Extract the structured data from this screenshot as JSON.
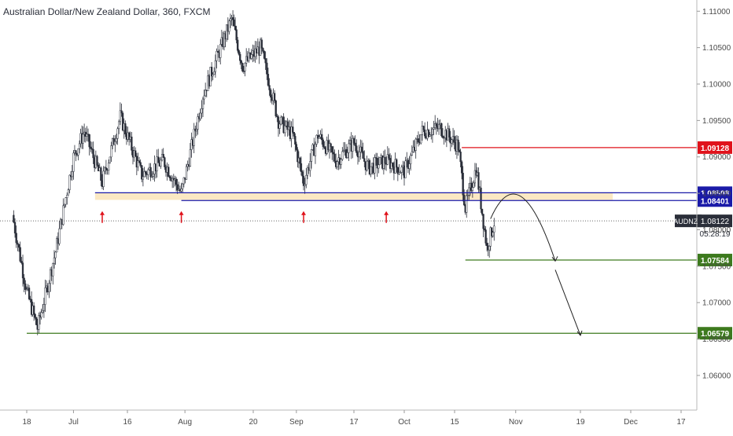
{
  "title": "Australian Dollar/New Zealand Dollar, 360, FXCM",
  "colors": {
    "candle": "#2a2e39",
    "axis_text": "#4a4a4a",
    "grid": "#ececec",
    "red_level": "#e0121b",
    "blue_level": "#1a1aa8",
    "green_level": "#3d7a1e",
    "zone_fill": "#fbe6bd",
    "arrow_up": "#e0121b",
    "projection": "#222222",
    "price_tag": "#2a2e39"
  },
  "chart_data": {
    "type": "candlestick",
    "symbol": "AUDNZD",
    "ylim": [
      1.056,
      1.111
    ],
    "y_ticks": [
      "1.11000",
      "1.10500",
      "1.10000",
      "1.09500",
      "1.09000",
      "1.08500",
      "1.08000",
      "1.07500",
      "1.07000",
      "1.06500",
      "1.06000"
    ],
    "x_ticks": [
      "18",
      "Jul",
      "16",
      "Aug",
      "20",
      "Sep",
      "17",
      "Oct",
      "15",
      "Nov",
      "19",
      "Dec",
      "17"
    ],
    "levels": [
      {
        "price": 1.09128,
        "label": "1.09128",
        "style": "red"
      },
      {
        "price": 1.08508,
        "label": "1.08508",
        "style": "blue"
      },
      {
        "price": 1.08401,
        "label": "1.08401",
        "style": "blue"
      },
      {
        "price": 1.07584,
        "label": "1.07584",
        "style": "green"
      },
      {
        "price": 1.06579,
        "label": "1.06579",
        "style": "green"
      }
    ],
    "current_price": {
      "symbol": "AUDNZD",
      "price": 1.08122,
      "label": "1.08122",
      "countdown": "05:28:19"
    },
    "support_zone": {
      "top": 1.0851,
      "bottom": 1.0841
    },
    "series_close_approx": [
      {
        "date": "Jun 14",
        "price": 1.082
      },
      {
        "date": "Jun 18",
        "price": 1.0715
      },
      {
        "date": "Jun 21",
        "price": 1.0665
      },
      {
        "date": "Jun 26",
        "price": 1.077
      },
      {
        "date": "Jul 1",
        "price": 1.09
      },
      {
        "date": "Jul 4",
        "price": 1.0935
      },
      {
        "date": "Jul 9",
        "price": 1.0865
      },
      {
        "date": "Jul 14",
        "price": 1.0955
      },
      {
        "date": "Jul 20",
        "price": 1.0875
      },
      {
        "date": "Jul 26",
        "price": 1.0895
      },
      {
        "date": "Jul 31",
        "price": 1.085
      },
      {
        "date": "Aug 6",
        "price": 1.0985
      },
      {
        "date": "Aug 14",
        "price": 1.109
      },
      {
        "date": "Aug 17",
        "price": 1.1025
      },
      {
        "date": "Aug 22",
        "price": 1.105
      },
      {
        "date": "Aug 27",
        "price": 1.095
      },
      {
        "date": "Aug 31",
        "price": 1.093
      },
      {
        "date": "Sep 3",
        "price": 1.0865
      },
      {
        "date": "Sep 7",
        "price": 1.093
      },
      {
        "date": "Sep 12",
        "price": 1.0895
      },
      {
        "date": "Sep 17",
        "price": 1.092
      },
      {
        "date": "Sep 21",
        "price": 1.0885
      },
      {
        "date": "Sep 26",
        "price": 1.0895
      },
      {
        "date": "Oct 1",
        "price": 1.088
      },
      {
        "date": "Oct 6",
        "price": 1.0935
      },
      {
        "date": "Oct 11",
        "price": 1.094
      },
      {
        "date": "Oct 16",
        "price": 1.0915
      },
      {
        "date": "Oct 18",
        "price": 1.083
      },
      {
        "date": "Oct 21",
        "price": 1.0885
      },
      {
        "date": "Oct 24",
        "price": 1.0775
      },
      {
        "date": "Oct 26",
        "price": 1.081
      }
    ]
  }
}
